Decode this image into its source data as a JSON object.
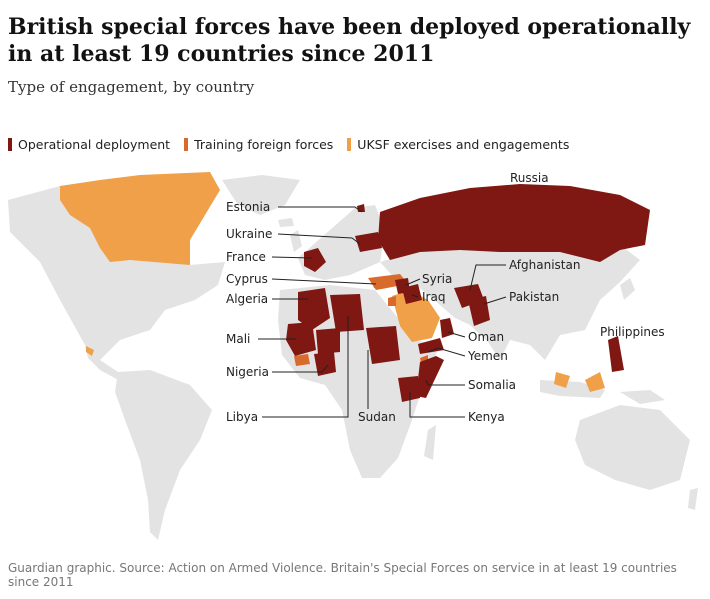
{
  "title": "British special forces have been deployed operationally in at least 19 countries since 2011",
  "subtitle": "Type of engagement, by country",
  "colors": {
    "land": "#e3e3e3",
    "operational": "#7f1712",
    "training": "#d86a2c",
    "exercises": "#f0a048"
  },
  "legend": [
    {
      "label": "Operational deployment",
      "color": "#7f1712"
    },
    {
      "label": "Training foreign forces",
      "color": "#d86a2c"
    },
    {
      "label": "UKSF exercises and engagements",
      "color": "#f0a048"
    }
  ],
  "labels": {
    "russia": "Russia",
    "estonia": "Estonia",
    "ukraine": "Ukraine",
    "france": "France",
    "cyprus": "Cyprus",
    "algeria": "Algeria",
    "mali": "Mali",
    "nigeria": "Nigeria",
    "libya": "Libya",
    "sudan": "Sudan",
    "syria": "Syria",
    "iraq": "Iraq",
    "oman": "Oman",
    "yemen": "Yemen",
    "somalia": "Somalia",
    "kenya": "Kenya",
    "afghanistan": "Afghanistan",
    "pakistan": "Pakistan",
    "philippines": "Philippines"
  },
  "source": "Guardian graphic. Source: Action on Armed Violence. Britain's Special Forces on service in at least 19 countries since 2011"
}
